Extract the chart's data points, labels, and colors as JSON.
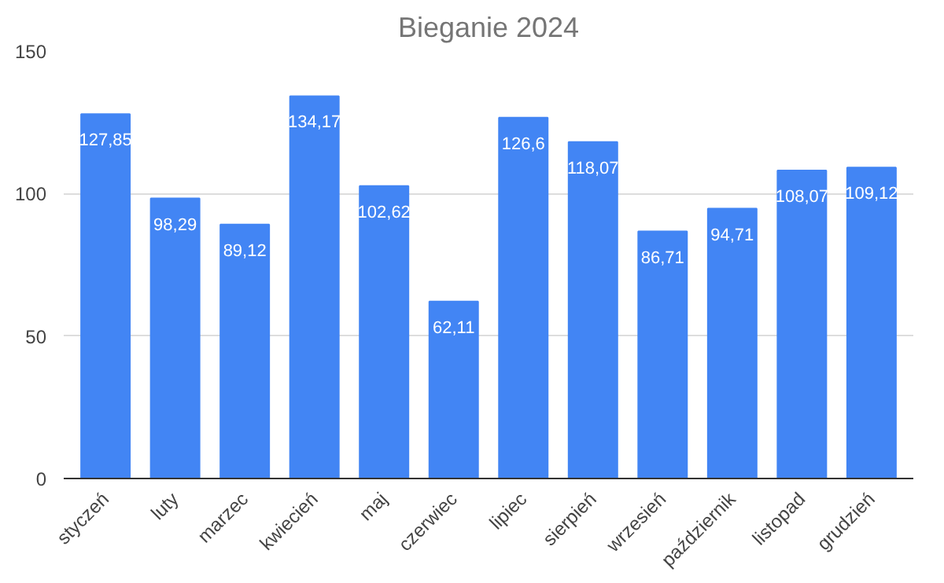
{
  "chart_data": {
    "type": "bar",
    "title": "Bieganie 2024",
    "categories": [
      "styczeń",
      "luty",
      "marzec",
      "kwiecień",
      "maj",
      "czerwiec",
      "lipiec",
      "sierpień",
      "wrzesień",
      "październik",
      "listopad",
      "grudzień"
    ],
    "values": [
      127.85,
      98.29,
      89.12,
      134.17,
      102.62,
      62.11,
      126.6,
      118.07,
      86.71,
      94.71,
      108.07,
      109.12
    ],
    "value_labels": [
      "127,85",
      "98,29",
      "89,12",
      "134,17",
      "102,62",
      "62,11",
      "126,6",
      "118,07",
      "86,71",
      "94,71",
      "108,07",
      "109,12"
    ],
    "color": "#4285f4",
    "ylim": [
      0,
      150
    ],
    "yticks": [
      0,
      50,
      100,
      150
    ],
    "grid": "y"
  }
}
